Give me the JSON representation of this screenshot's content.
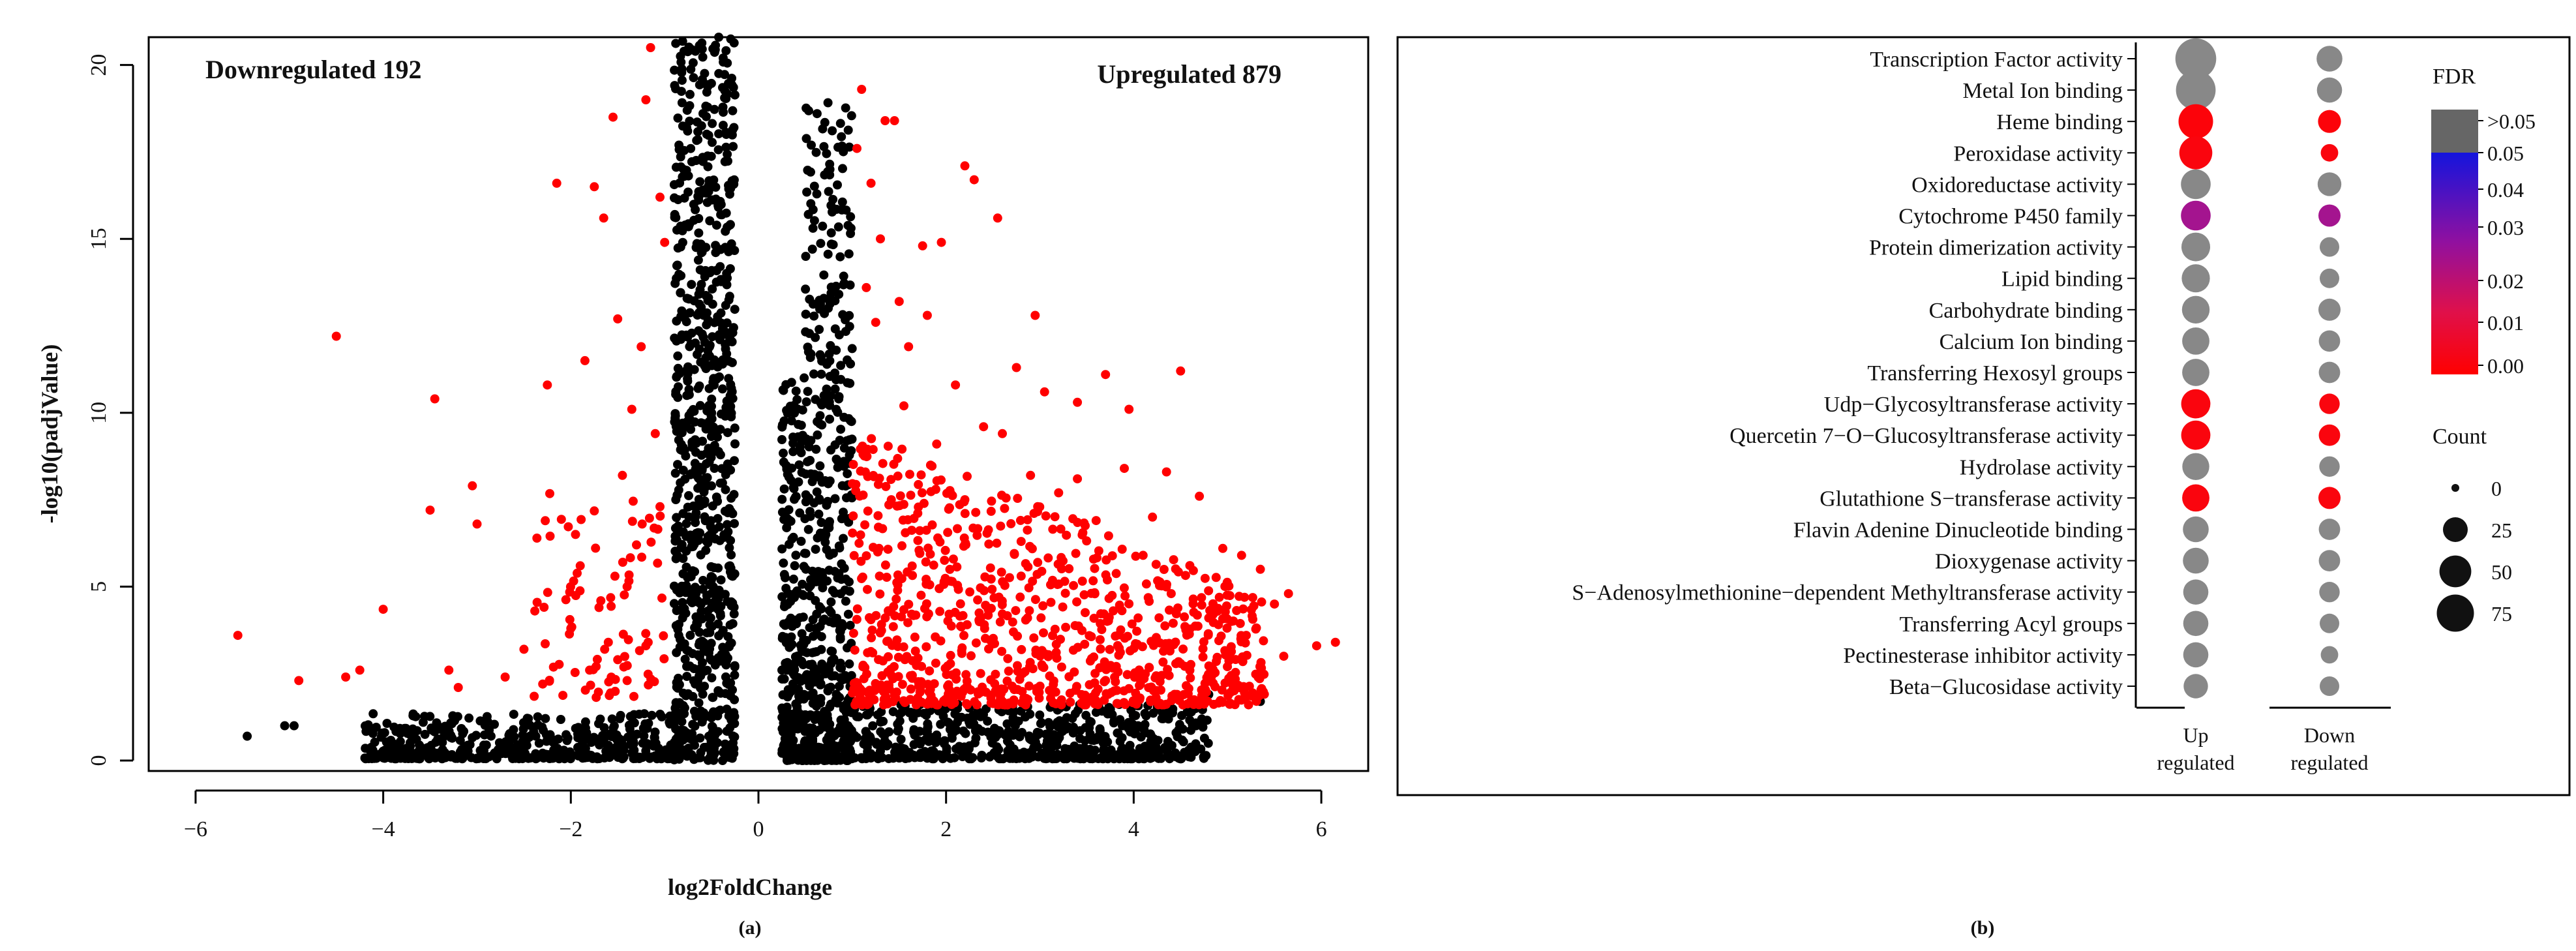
{
  "figure": {
    "panel_a_label": "(a)",
    "panel_b_label": "(b)"
  },
  "chart_data": [
    {
      "type": "scatter",
      "title": "",
      "xlabel": "log2FoldChange",
      "ylabel": "-log10(padjValue)",
      "xlim": [
        -6.5,
        6.5
      ],
      "ylim": [
        -0.3,
        20.8
      ],
      "xticks": [
        -6,
        -4,
        -2,
        0,
        2,
        4,
        6
      ],
      "yticks": [
        0,
        5,
        10,
        15,
        20
      ],
      "annotations": {
        "down": "Downregulated 192",
        "up": "Upregulated 879"
      },
      "colors": {
        "significant": "#ff0000",
        "not_significant": "#000000"
      },
      "series": [
        {
          "color": "#ff0000",
          "points": [
            [
              -5.55,
              3.6
            ],
            [
              -4.9,
              2.3
            ],
            [
              -4.5,
              12.2
            ],
            [
              -4.4,
              2.4
            ],
            [
              -4.25,
              2.6
            ],
            [
              -4.0,
              4.35
            ],
            [
              -3.5,
              7.2
            ],
            [
              -3.45,
              10.4
            ],
            [
              -3.3,
              2.6
            ],
            [
              -3.2,
              2.1
            ],
            [
              -3.05,
              7.9
            ],
            [
              -3.0,
              6.8
            ],
            [
              -2.7,
              2.4
            ],
            [
              -2.5,
              3.2
            ],
            [
              -2.25,
              10.8
            ],
            [
              -2.15,
              16.6
            ],
            [
              -2.0,
              3.8
            ],
            [
              -1.95,
              6.5
            ],
            [
              -1.85,
              11.5
            ],
            [
              -1.75,
              16.5
            ],
            [
              -1.65,
              15.6
            ],
            [
              -1.55,
              18.5
            ],
            [
              -1.5,
              12.7
            ],
            [
              -1.45,
              8.2
            ],
            [
              -1.4,
              5.0
            ],
            [
              -1.35,
              10.1
            ],
            [
              -1.25,
              11.9
            ],
            [
              -1.15,
              20.5
            ],
            [
              -1.05,
              16.2
            ],
            [
              -1.0,
              14.9
            ],
            [
              -1.2,
              19.0
            ],
            [
              -1.8,
              2.6
            ],
            [
              -1.6,
              3.4
            ],
            [
              -1.3,
              6.2
            ],
            [
              -1.1,
              9.4
            ],
            [
              -2.3,
              2.2
            ],
            [
              -1.7,
              4.4
            ],
            [
              -1.9,
              5.6
            ],
            [
              -1.5,
              2.9
            ],
            [
              -1.2,
              3.3
            ],
            [
              -1.05,
              7.3
            ],
            [
              -1.4,
              2.3
            ],
            [
              1.1,
              19.3
            ],
            [
              1.35,
              18.4
            ],
            [
              1.45,
              18.4
            ],
            [
              1.75,
              14.8
            ],
            [
              1.95,
              14.9
            ],
            [
              2.2,
              17.1
            ],
            [
              2.3,
              16.7
            ],
            [
              2.55,
              15.6
            ],
            [
              2.95,
              12.8
            ],
            [
              2.75,
              11.3
            ],
            [
              3.05,
              10.6
            ],
            [
              3.4,
              10.3
            ],
            [
              3.7,
              11.1
            ],
            [
              3.95,
              10.1
            ],
            [
              4.5,
              11.2
            ],
            [
              4.35,
              8.3
            ],
            [
              4.7,
              7.6
            ],
            [
              4.95,
              6.1
            ],
            [
              5.15,
              5.9
            ],
            [
              5.35,
              5.5
            ],
            [
              5.5,
              4.5
            ],
            [
              5.65,
              4.8
            ],
            [
              5.95,
              3.3
            ],
            [
              6.15,
              3.4
            ],
            [
              1.05,
              17.6
            ],
            [
              1.2,
              16.6
            ],
            [
              1.3,
              15.0
            ],
            [
              1.5,
              13.2
            ],
            [
              1.6,
              11.9
            ],
            [
              1.8,
              12.8
            ],
            [
              2.1,
              10.8
            ],
            [
              2.4,
              9.6
            ],
            [
              2.6,
              9.4
            ],
            [
              2.9,
              8.2
            ],
            [
              3.2,
              7.7
            ],
            [
              3.6,
              6.9
            ],
            [
              4.1,
              5.9
            ],
            [
              4.4,
              4.8
            ],
            [
              4.8,
              4.1
            ],
            [
              5.2,
              3.6
            ],
            [
              5.6,
              3.0
            ],
            [
              3.4,
              8.1
            ],
            [
              2.2,
              7.5
            ],
            [
              1.9,
              9.1
            ],
            [
              1.25,
              12.6
            ],
            [
              1.15,
              13.6
            ],
            [
              1.55,
              10.2
            ],
            [
              4.2,
              7.0
            ],
            [
              3.9,
              8.4
            ],
            [
              2.8,
              6.3
            ]
          ]
        }
      ]
    },
    {
      "type": "scatter",
      "title": "",
      "categories": [
        "Transcription Factor activity",
        "Metal Ion binding",
        "Heme binding",
        "Peroxidase activity",
        "Oxidoreductase activity",
        "Cytochrome P450 family",
        "Protein dimerization activity",
        "Lipid binding",
        "Carbohydrate binding",
        "Calcium Ion binding",
        "Transferring Hexosyl groups",
        "Udp−Glycosyltransferase activity",
        "Quercetin 7−O−Glucosyltransferase activity",
        "Hydrolase activity",
        "Glutathione S−transferase activity",
        "Flavin Adenine Dinucleotide binding",
        "Dioxygenase activity",
        "S−Adenosylmethionine−dependent Methyltransferase activity",
        "Transferring Acyl groups",
        "Pectinesterase inhibitor activity",
        "Beta−Glucosidase activity"
      ],
      "columns": [
        {
          "line1": "Up",
          "line2": "regulated"
        },
        {
          "line1": "Down",
          "line2": "regulated"
        }
      ],
      "up_count": [
        95,
        88,
        62,
        55,
        42,
        42,
        38,
        36,
        34,
        33,
        33,
        40,
        40,
        32,
        33,
        28,
        28,
        26,
        26,
        26,
        24
      ],
      "down_count": [
        28,
        26,
        20,
        8,
        22,
        18,
        12,
        12,
        18,
        16,
        16,
        14,
        16,
        14,
        18,
        16,
        16,
        14,
        12,
        8,
        12
      ],
      "up_fdr": [
        ">0.05",
        ">0.05",
        0.003,
        0.004,
        ">0.05",
        0.03,
        ">0.05",
        ">0.05",
        ">0.05",
        ">0.05",
        ">0.05",
        0.004,
        0.004,
        ">0.05",
        0.004,
        ">0.05",
        ">0.05",
        ">0.05",
        ">0.05",
        ">0.05",
        ">0.05"
      ],
      "down_fdr": [
        ">0.05",
        ">0.05",
        0.003,
        0.004,
        ">0.05",
        0.03,
        ">0.05",
        ">0.05",
        ">0.05",
        ">0.05",
        ">0.05",
        0.004,
        0.004,
        ">0.05",
        0.004,
        ">0.05",
        ">0.05",
        ">0.05",
        ">0.05",
        ">0.05",
        ">0.05"
      ],
      "legend": {
        "fdr_title": "FDR",
        "fdr_ticks": [
          ">0.05",
          "0.05",
          "0.04",
          "0.03",
          "0.02",
          "0.01",
          "0.00"
        ],
        "count_title": "Count",
        "count_ticks": [
          "0",
          "25",
          "50",
          "75"
        ],
        "gray": "#888888"
      }
    }
  ]
}
